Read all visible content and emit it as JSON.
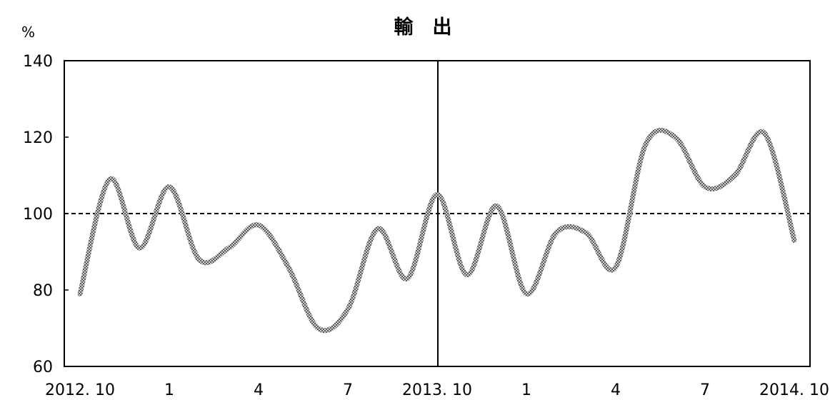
{
  "chart_data": {
    "type": "line",
    "title": "輸　出",
    "ylabel": "%",
    "xlabel": "",
    "ylim": [
      60,
      140
    ],
    "yticks": [
      60,
      80,
      100,
      120,
      140
    ],
    "x_tick_labels": [
      {
        "label": "2012. 10",
        "index": 0
      },
      {
        "label": "1",
        "index": 3
      },
      {
        "label": "4",
        "index": 6
      },
      {
        "label": "7",
        "index": 9
      },
      {
        "label": "2013. 10",
        "index": 12
      },
      {
        "label": "1",
        "index": 15
      },
      {
        "label": "4",
        "index": 18
      },
      {
        "label": "7",
        "index": 21
      },
      {
        "label": "2014. 10",
        "index": 24
      }
    ],
    "reference_line": {
      "value": 100,
      "style": "dashed"
    },
    "divider_index": 12,
    "grid": false,
    "legend": "none",
    "series": [
      {
        "color": "#8a8a8a",
        "values": [
          79,
          109,
          91,
          107,
          88,
          91,
          97,
          86,
          70,
          75,
          96,
          83,
          105,
          84,
          102,
          79,
          95,
          95,
          86,
          118,
          120,
          107,
          110,
          121,
          93
        ]
      }
    ]
  }
}
